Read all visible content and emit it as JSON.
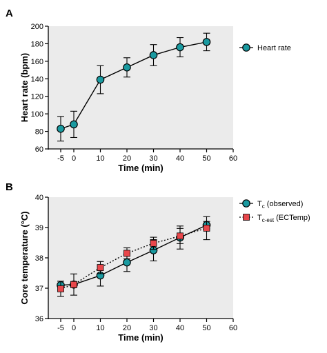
{
  "chart_data": [
    {
      "panel": "A",
      "type": "line",
      "xlabel": "Time (min)",
      "ylabel": "Heart rate (bpm)",
      "xlim": [
        -5,
        60
      ],
      "ylim": [
        60,
        200
      ],
      "x_ticks": [
        "-5",
        "0",
        "10",
        "20",
        "30",
        "40",
        "50",
        "60"
      ],
      "y_ticks": [
        "60",
        "80",
        "100",
        "120",
        "140",
        "160",
        "180",
        "200"
      ],
      "legend_position": "right",
      "series": [
        {
          "name": "Heart rate",
          "marker": "circle",
          "line": "solid",
          "color": "#1a9aa0",
          "x": [
            -5,
            0,
            10,
            20,
            30,
            40,
            50
          ],
          "y": [
            83,
            88,
            139,
            153,
            167,
            176,
            182
          ],
          "err": [
            14,
            15,
            16,
            11,
            12,
            11,
            10
          ]
        }
      ]
    },
    {
      "panel": "B",
      "type": "line",
      "xlabel": "Time (min)",
      "ylabel": "Core temperature (°C)",
      "xlim": [
        -5,
        60
      ],
      "ylim": [
        36,
        40
      ],
      "x_ticks": [
        "-5",
        "0",
        "10",
        "20",
        "30",
        "40",
        "50",
        "60"
      ],
      "y_ticks": [
        "36",
        "37",
        "38",
        "39",
        "40"
      ],
      "legend_position": "right",
      "series": [
        {
          "name": "Tc (observed)",
          "name_main": "T",
          "name_sub": "c",
          "name_rest": " (observed)",
          "marker": "circle",
          "line": "solid",
          "color": "#1a9aa0",
          "x": [
            -5,
            0,
            10,
            20,
            30,
            40,
            50
          ],
          "y": [
            37.1,
            37.12,
            37.42,
            37.85,
            38.25,
            38.67,
            39.08
          ],
          "err": [
            0.05,
            0.35,
            0.35,
            0.3,
            0.35,
            0.38,
            0.12
          ]
        },
        {
          "name": "Tc-est (ECTemp)",
          "name_main": "T",
          "name_sub": "c-est",
          "name_rest": " (ECTemp)",
          "marker": "square",
          "line": "dotted",
          "color": "#e8474b",
          "x": [
            -5,
            0,
            10,
            20,
            30,
            40,
            50
          ],
          "y": [
            36.98,
            37.12,
            37.68,
            38.15,
            38.48,
            38.72,
            38.98
          ],
          "err": [
            0.25,
            0.1,
            0.2,
            0.18,
            0.2,
            0.25,
            0.38
          ]
        }
      ]
    }
  ]
}
